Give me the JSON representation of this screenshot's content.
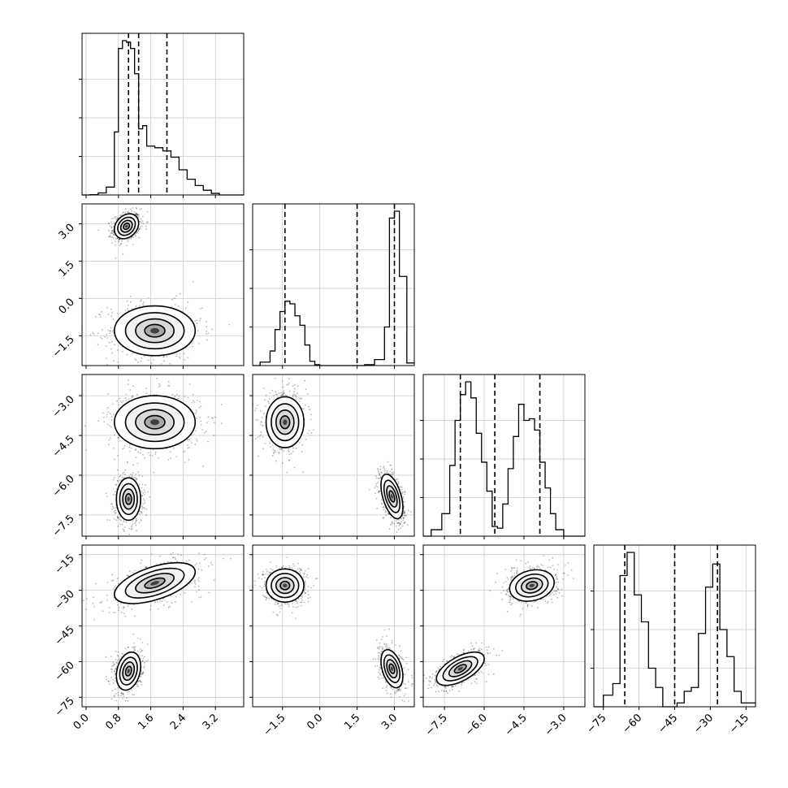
{
  "chart_data": {
    "type": "corner",
    "grid": true,
    "parameters": [
      {
        "name": "",
        "range": [
          -0.1,
          3.9
        ],
        "ticks": [
          {
            "v": 0.0,
            "label": "0.0"
          },
          {
            "v": 0.8,
            "label": "0.8"
          },
          {
            "v": 1.6,
            "label": "1.6"
          },
          {
            "v": 2.4,
            "label": "2.4"
          },
          {
            "v": 3.2,
            "label": "3.2"
          }
        ],
        "quantiles": [
          1.05,
          1.3,
          2.0
        ]
      },
      {
        "name": "",
        "range": [
          -2.7,
          3.8
        ],
        "ticks": [
          {
            "v": -1.5,
            "label": "−1.5"
          },
          {
            "v": 0.0,
            "label": "0.0"
          },
          {
            "v": 1.5,
            "label": "1.5"
          },
          {
            "v": 3.0,
            "label": "3.0"
          }
        ],
        "quantiles": [
          -1.4,
          1.5,
          3.0
        ]
      },
      {
        "name": "",
        "range": [
          -8.3,
          -2.2
        ],
        "ticks": [
          {
            "v": -7.5,
            "label": "−7.5"
          },
          {
            "v": -6.0,
            "label": "−6.0"
          },
          {
            "v": -4.5,
            "label": "−4.5"
          },
          {
            "v": -3.0,
            "label": "−3.0"
          }
        ],
        "quantiles": [
          -6.9,
          -5.6,
          -3.9
        ]
      },
      {
        "name": "",
        "range": [
          -79,
          -11
        ],
        "ticks": [
          {
            "v": -75,
            "label": "−75"
          },
          {
            "v": -60,
            "label": "−60"
          },
          {
            "v": -45,
            "label": "−45"
          },
          {
            "v": -30,
            "label": "−30"
          },
          {
            "v": -15,
            "label": "−15"
          }
        ],
        "quantiles": [
          -66,
          -45,
          -27
        ]
      }
    ],
    "histograms": [
      {
        "edges": [
          -0.1,
          0.1,
          0.3,
          0.5,
          0.7,
          0.8,
          0.9,
          1.0,
          1.1,
          1.2,
          1.3,
          1.4,
          1.5,
          1.7,
          1.9,
          2.1,
          2.3,
          2.5,
          2.7,
          2.9,
          3.1,
          3.3,
          3.9
        ],
        "counts": [
          0,
          0.2,
          1.3,
          5,
          40,
          93,
          98,
          97,
          93,
          77,
          42,
          44,
          31,
          30,
          28,
          24,
          16,
          10,
          6,
          3,
          1,
          0
        ]
      },
      {
        "edges": [
          -2.7,
          -2.4,
          -2.0,
          -1.8,
          -1.6,
          -1.4,
          -1.2,
          -1.0,
          -0.8,
          -0.6,
          -0.4,
          -0.2,
          0.0,
          0.2,
          0.6,
          1.0,
          1.4,
          1.8,
          2.2,
          2.6,
          2.8,
          3.0,
          3.2,
          3.5,
          3.8
        ],
        "counts": [
          0,
          4,
          17,
          42,
          63,
          75,
          72,
          58,
          47,
          24,
          5,
          1,
          0,
          0,
          0,
          0,
          0,
          1,
          7,
          45,
          172,
          180,
          104,
          3
        ]
      },
      {
        "edges": [
          -8.3,
          -8.0,
          -7.6,
          -7.3,
          -7.1,
          -6.9,
          -6.7,
          -6.5,
          -6.3,
          -6.1,
          -5.9,
          -5.7,
          -5.5,
          -5.3,
          -5.1,
          -4.9,
          -4.7,
          -4.5,
          -4.3,
          -4.1,
          -3.9,
          -3.7,
          -3.5,
          -3.3,
          -3.0,
          -2.2
        ],
        "counts": [
          0,
          4,
          14,
          44,
          72,
          88,
          96,
          86,
          64,
          46,
          28,
          6,
          5,
          20,
          42,
          62,
          82,
          72,
          73,
          66,
          46,
          30,
          14,
          4,
          0
        ]
      },
      {
        "edges": [
          -79,
          -75,
          -71,
          -68,
          -65,
          -62,
          -59,
          -56,
          -53,
          -50,
          -47,
          -44,
          -41,
          -38,
          -35,
          -32,
          -29,
          -26,
          -23,
          -20,
          -17,
          -11
        ],
        "counts": [
          0,
          3,
          6,
          34,
          40,
          29,
          22,
          10,
          5,
          0,
          0,
          1,
          4,
          5,
          19,
          31,
          37,
          20,
          13,
          4,
          1
        ]
      }
    ],
    "blobs": [
      {
        "xi": 0,
        "yi": 1,
        "cx": 1.0,
        "cy": 2.9,
        "sx": 0.15,
        "sy": 0.25,
        "rho": 0.25
      },
      {
        "xi": 0,
        "yi": 1,
        "cx": 1.7,
        "cy": -1.3,
        "sx": 0.5,
        "sy": 0.5,
        "rho": 0.0
      },
      {
        "xi": 0,
        "yi": 2,
        "cx": 1.7,
        "cy": -4.0,
        "sx": 0.5,
        "sy": 0.5,
        "rho": 0.0
      },
      {
        "xi": 0,
        "yi": 2,
        "cx": 1.05,
        "cy": -6.9,
        "sx": 0.15,
        "sy": 0.4,
        "rho": 0.0
      },
      {
        "xi": 0,
        "yi": 3,
        "cx": 1.7,
        "cy": -27,
        "sx": 0.5,
        "sy": 4.3,
        "rho": 0.55
      },
      {
        "xi": 0,
        "yi": 3,
        "cx": 1.05,
        "cy": -64,
        "sx": 0.15,
        "sy": 4.0,
        "rho": 0.25
      },
      {
        "xi": 1,
        "yi": 2,
        "cx": -1.4,
        "cy": -4.0,
        "sx": 0.38,
        "sy": 0.48,
        "rho": 0.0
      },
      {
        "xi": 1,
        "yi": 2,
        "cx": 2.9,
        "cy": -6.8,
        "sx": 0.22,
        "sy": 0.42,
        "rho": -0.5
      },
      {
        "xi": 1,
        "yi": 3,
        "cx": -1.4,
        "cy": -28,
        "sx": 0.38,
        "sy": 3.5,
        "rho": 0.0
      },
      {
        "xi": 1,
        "yi": 3,
        "cx": 2.9,
        "cy": -63,
        "sx": 0.22,
        "sy": 4.0,
        "rho": -0.4
      },
      {
        "xi": 2,
        "yi": 3,
        "cx": -4.2,
        "cy": -28,
        "sx": 0.42,
        "sy": 3.3,
        "rho": 0.2
      },
      {
        "xi": 2,
        "yi": 3,
        "cx": -6.9,
        "cy": -63,
        "sx": 0.45,
        "sy": 3.5,
        "rho": 0.6
      }
    ]
  }
}
